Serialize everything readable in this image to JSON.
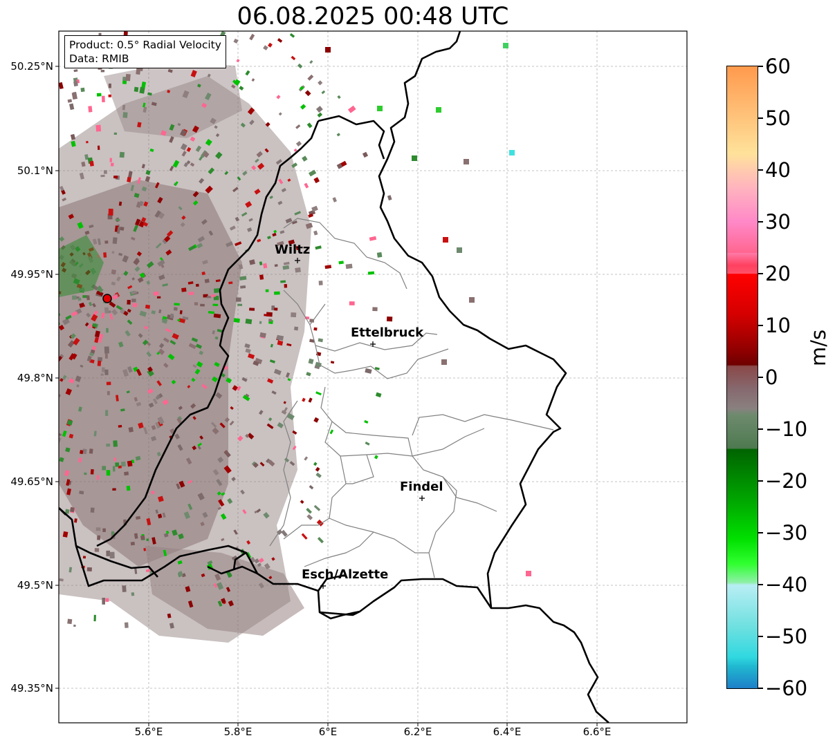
{
  "title": "06.08.2025 00:48 UTC",
  "info_box": {
    "product": "Product: 0.5° Radial Velocity",
    "source": "Data: RMIB"
  },
  "y_ticks": [
    "50.25°N",
    "50.1°N",
    "49.95°N",
    "49.8°N",
    "49.65°N",
    "49.5°N",
    "49.35°N"
  ],
  "x_ticks": [
    "5.6°E",
    "5.8°E",
    "6°E",
    "6.2°E",
    "6.4°E",
    "6.6°E"
  ],
  "cities": [
    {
      "name": "Wiltz"
    },
    {
      "name": "Ettelbruck"
    },
    {
      "name": "Findel"
    },
    {
      "name": "Esch/Alzette"
    }
  ],
  "colorbar": {
    "label": "m/s",
    "ticks": [
      "60",
      "50",
      "40",
      "30",
      "20",
      "10",
      "0",
      "−10",
      "−20",
      "−30",
      "−40",
      "−50",
      "−60"
    ],
    "range": [
      -60,
      60
    ]
  },
  "colors": {
    "border": "#000000",
    "district": "#808080",
    "radar_site": "#e00000"
  }
}
